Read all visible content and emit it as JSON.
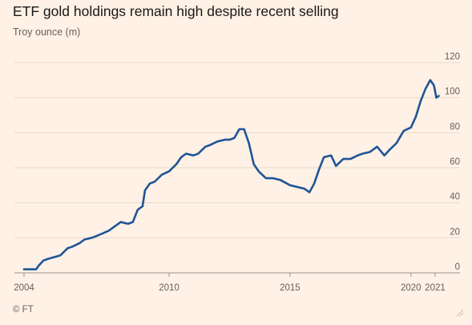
{
  "header": {
    "title": "ETF gold holdings remain high despite recent selling",
    "subtitle": "Troy ounce (m)"
  },
  "footer": {
    "source": "© FT"
  },
  "colors": {
    "background": "#fff1e5",
    "line": "#1f5597",
    "grid": "#e6d9ce",
    "axis": "#66605c"
  },
  "chart_data": {
    "type": "line",
    "title": "ETF gold holdings remain high despite recent selling",
    "ylabel": "Troy ounce (m)",
    "xlabel": "",
    "xlim": [
      2004.0,
      2021.1
    ],
    "ylim": [
      0,
      120
    ],
    "grid": true,
    "y_axis_side": "right",
    "xticks": [
      2004,
      2010,
      2015,
      2020,
      2021
    ],
    "yticks": [
      0,
      20,
      40,
      60,
      80,
      100,
      120
    ],
    "series": [
      {
        "x": [
          2004.0,
          2004.5,
          2004.6,
          2004.8,
          2005.0,
          2005.5,
          2005.8,
          2006.0,
          2006.3,
          2006.5,
          2006.8,
          2007.0,
          2007.5,
          2008.0,
          2008.3,
          2008.5,
          2008.7,
          2008.9,
          2009.0,
          2009.2,
          2009.4,
          2009.7,
          2010.0,
          2010.3,
          2010.5,
          2010.7,
          2011.0,
          2011.2,
          2011.5,
          2011.7,
          2012.0,
          2012.3,
          2012.5,
          2012.7,
          2012.9,
          2013.1,
          2013.3,
          2013.5,
          2013.7,
          2014.0,
          2014.3,
          2014.6,
          2015.0,
          2015.3,
          2015.6,
          2015.8,
          2016.0,
          2016.2,
          2016.4,
          2016.7,
          2016.9,
          2017.2,
          2017.5,
          2017.8,
          2018.0,
          2018.3,
          2018.6,
          2018.9,
          2019.1,
          2019.4,
          2019.7,
          2020.0,
          2020.2,
          2020.4,
          2020.6,
          2020.8,
          2020.95,
          2021.05,
          2021.15
        ],
        "values": [
          2,
          2,
          4,
          7,
          8,
          10,
          14,
          15,
          17,
          19,
          20,
          21,
          24,
          29,
          28,
          29,
          36,
          38,
          47,
          51,
          52,
          56,
          58,
          62,
          66,
          68,
          67,
          68,
          72,
          73,
          75,
          76,
          76,
          77,
          82,
          82,
          74,
          62,
          58,
          54,
          54,
          53,
          50,
          49,
          48,
          46,
          51,
          59,
          66,
          67,
          61,
          65,
          65,
          67,
          68,
          69,
          72,
          67,
          70,
          74,
          81,
          83,
          89,
          98,
          105,
          110,
          107,
          100,
          101
        ]
      }
    ]
  }
}
